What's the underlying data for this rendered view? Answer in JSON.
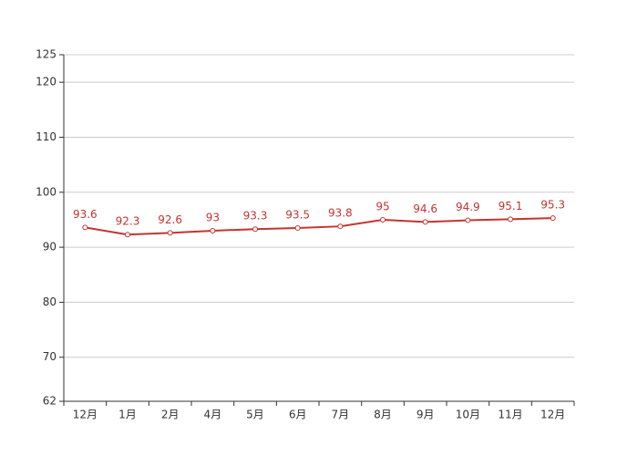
{
  "chart_data": {
    "type": "line",
    "categories": [
      "12月",
      "1月",
      "2月",
      "4月",
      "5月",
      "6月",
      "7月",
      "8月",
      "9月",
      "10月",
      "11月",
      "12月"
    ],
    "values": [
      93.6,
      92.3,
      92.6,
      93,
      93.3,
      93.5,
      93.8,
      95,
      94.6,
      94.9,
      95.1,
      95.3
    ],
    "color": "#c23531",
    "ylim": [
      62,
      125
    ],
    "yticks": [
      62,
      70,
      80,
      90,
      100,
      110,
      120,
      125
    ],
    "grid": true
  }
}
